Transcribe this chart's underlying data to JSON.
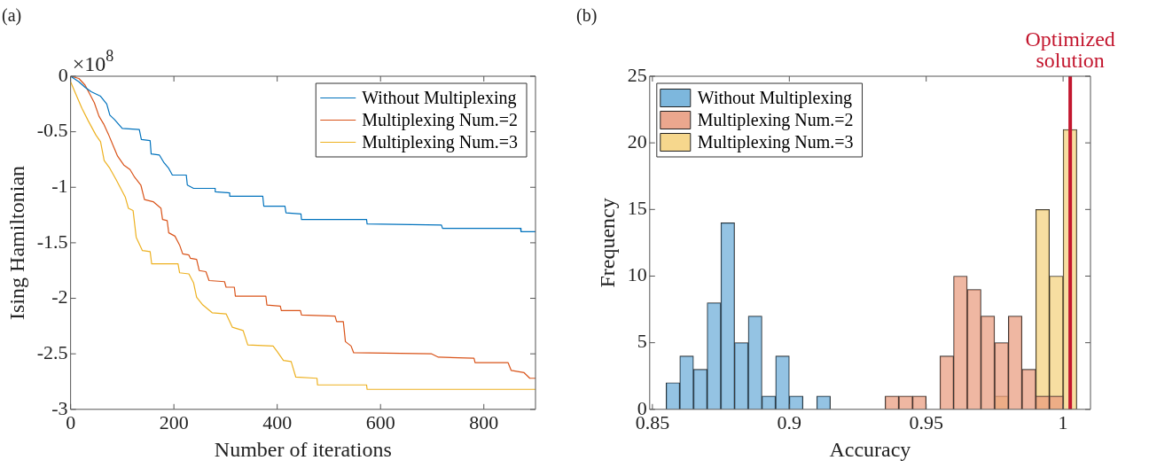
{
  "chart_data": [
    {
      "type": "line",
      "xlabel": "Number of iterations",
      "ylabel": "Ising Hamiltonian",
      "annotations": [
        "(a)",
        "×10$^{8}$"
      ],
      "xlim": [
        0,
        900
      ],
      "xticks": [
        0,
        200,
        400,
        600,
        800
      ],
      "ylim": [
        -3,
        0
      ],
      "yticks": [
        -3,
        -2.5,
        -2,
        -1.5,
        -1,
        -0.5,
        0
      ],
      "legend": "top right",
      "marker": "none",
      "line_style": "solid",
      "series": [
        {
          "name": "Without Multiplexing",
          "color": "#0072bd",
          "x": [
            0,
            16,
            28,
            40,
            58,
            70,
            76,
            85,
            100,
            133,
            137,
            154,
            156,
            172,
            181,
            190,
            197,
            224,
            226,
            238,
            280,
            280,
            308,
            308,
            372,
            374,
            415,
            417,
            446,
            447,
            573,
            574,
            718,
            720,
            871,
            872,
            900
          ],
          "values": [
            0,
            -0.05,
            -0.1,
            -0.14,
            -0.18,
            -0.25,
            -0.35,
            -0.39,
            -0.47,
            -0.48,
            -0.57,
            -0.58,
            -0.7,
            -0.71,
            -0.78,
            -0.83,
            -0.89,
            -0.89,
            -0.98,
            -1.01,
            -1.01,
            -1.04,
            -1.05,
            -1.08,
            -1.08,
            -1.17,
            -1.17,
            -1.23,
            -1.24,
            -1.29,
            -1.29,
            -1.33,
            -1.34,
            -1.37,
            -1.37,
            -1.4,
            -1.4
          ]
        },
        {
          "name": "Multiplexing Num.=2",
          "color": "#d95319",
          "x": [
            0,
            16,
            28,
            37,
            46,
            55,
            64,
            73,
            82,
            91,
            103,
            115,
            124,
            136,
            143,
            160,
            175,
            178,
            187,
            190,
            202,
            211,
            217,
            229,
            232,
            244,
            249,
            262,
            268,
            298,
            301,
            317,
            319,
            378,
            380,
            406,
            408,
            445,
            447,
            512,
            515,
            528,
            532,
            543,
            548,
            699,
            712,
            781,
            783,
            847,
            853,
            878,
            889,
            900
          ],
          "values": [
            0,
            -0.02,
            -0.08,
            -0.16,
            -0.24,
            -0.36,
            -0.43,
            -0.52,
            -0.62,
            -0.72,
            -0.8,
            -0.84,
            -0.91,
            -0.98,
            -1.11,
            -1.13,
            -1.19,
            -1.29,
            -1.3,
            -1.41,
            -1.44,
            -1.52,
            -1.6,
            -1.61,
            -1.64,
            -1.65,
            -1.75,
            -1.76,
            -1.84,
            -1.85,
            -1.9,
            -1.9,
            -1.98,
            -1.98,
            -2.06,
            -2.07,
            -2.11,
            -2.11,
            -2.15,
            -2.16,
            -2.21,
            -2.21,
            -2.39,
            -2.43,
            -2.49,
            -2.5,
            -2.53,
            -2.54,
            -2.58,
            -2.58,
            -2.65,
            -2.67,
            -2.72,
            -2.72
          ]
        },
        {
          "name": "Multiplexing Num.=3",
          "color": "#edb120",
          "x": [
            0,
            10,
            22,
            34,
            49,
            58,
            65,
            76,
            88,
            97,
            106,
            112,
            121,
            127,
            139,
            154,
            157,
            208,
            211,
            229,
            238,
            244,
            256,
            274,
            301,
            313,
            334,
            343,
            392,
            400,
            412,
            427,
            436,
            477,
            478,
            573,
            574,
            900
          ],
          "values": [
            -0.05,
            -0.16,
            -0.29,
            -0.4,
            -0.53,
            -0.59,
            -0.76,
            -0.83,
            -0.93,
            -1.01,
            -1.09,
            -1.19,
            -1.21,
            -1.45,
            -1.57,
            -1.58,
            -1.69,
            -1.69,
            -1.77,
            -1.78,
            -1.86,
            -1.99,
            -2.06,
            -2.13,
            -2.14,
            -2.26,
            -2.29,
            -2.42,
            -2.43,
            -2.48,
            -2.56,
            -2.57,
            -2.71,
            -2.72,
            -2.78,
            -2.78,
            -2.82,
            -2.82
          ]
        }
      ]
    },
    {
      "type": "histogram",
      "xlabel": "Accuracy",
      "ylabel": "Frequency",
      "annotations": [
        "(b)"
      ],
      "xlim": [
        0.849,
        1.01
      ],
      "xticks": [
        0.85,
        0.9,
        0.95,
        1
      ],
      "ylim": [
        0,
        25
      ],
      "yticks": [
        0,
        5,
        10,
        15,
        20,
        25
      ],
      "legend": "top left",
      "bins": [
        0.855,
        0.86,
        0.865,
        0.87,
        0.875,
        0.88,
        0.885,
        0.89,
        0.895,
        0.9,
        0.905,
        0.91,
        0.915,
        0.92,
        0.925,
        0.93,
        0.935,
        0.94,
        0.945,
        0.95,
        0.955,
        0.96,
        0.965,
        0.97,
        0.975,
        0.98,
        0.985,
        0.99,
        0.995,
        1,
        1.005
      ],
      "series": [
        {
          "name": "Without Multiplexing",
          "color": "#66aad7",
          "values": [
            2,
            4,
            3,
            8,
            14,
            5,
            7,
            1,
            4,
            1,
            0,
            1,
            0,
            0,
            0,
            0,
            0,
            0,
            0,
            0,
            0,
            0,
            0,
            0,
            0,
            0,
            0,
            0,
            0,
            0
          ]
        },
        {
          "name": "Multiplexing Num.=2",
          "color": "#e8987a",
          "values": [
            0,
            0,
            0,
            0,
            0,
            0,
            0,
            0,
            0,
            0,
            0,
            0,
            0,
            0,
            0,
            0,
            1,
            1,
            1,
            0,
            4,
            10,
            9,
            7,
            5,
            7,
            3,
            1,
            1,
            0
          ]
        },
        {
          "name": "Multiplexing Num.=3",
          "color": "#f4d079",
          "values": [
            0,
            0,
            0,
            0,
            0,
            0,
            0,
            0,
            0,
            0,
            0,
            0,
            0,
            0,
            0,
            0,
            0,
            0,
            0,
            0,
            0,
            0,
            0,
            0,
            1,
            0,
            null,
            15,
            10,
            21
          ]
        }
      ],
      "ref_lines": [
        {
          "axis": "x",
          "value": 1.0026,
          "label": "Optimized solution",
          "color": "#c3162e"
        }
      ]
    }
  ]
}
